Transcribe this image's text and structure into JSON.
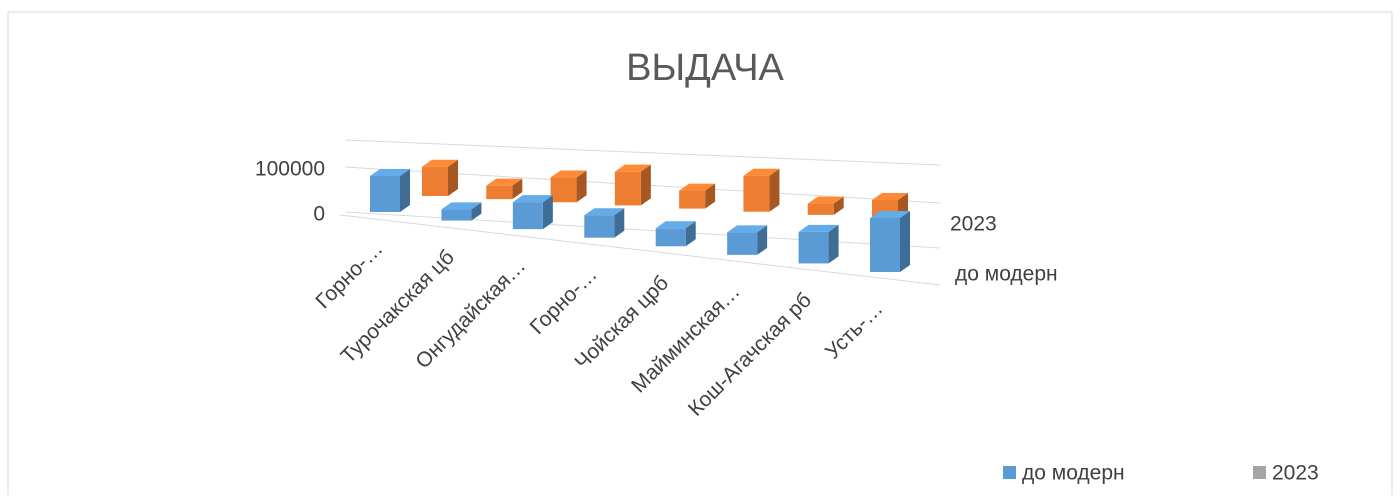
{
  "chart_data": {
    "type": "bar3d",
    "title": "ВЫДАЧА",
    "categories": [
      "Горно-…",
      "Турочакская цб",
      "Онгудайская…",
      "Горно-…",
      "Чойская црб",
      "Майминская…",
      "Кош-Агачская рб",
      "Усть-…"
    ],
    "series": [
      {
        "name": "до модерн",
        "color": "#5b9bd5",
        "legend_color": "#5b9bd5",
        "values": [
          80000,
          25000,
          60000,
          50000,
          40000,
          50000,
          70000,
          120000
        ]
      },
      {
        "name": "2023",
        "color": "#ed7d31",
        "legend_color": "#a5a5a5",
        "values": [
          65000,
          30000,
          55000,
          75000,
          40000,
          80000,
          25000,
          40000
        ]
      }
    ],
    "ylim": [
      0,
      100000
    ],
    "yticks": [
      0,
      100000
    ],
    "grid": true,
    "legend": "bottom-right"
  }
}
